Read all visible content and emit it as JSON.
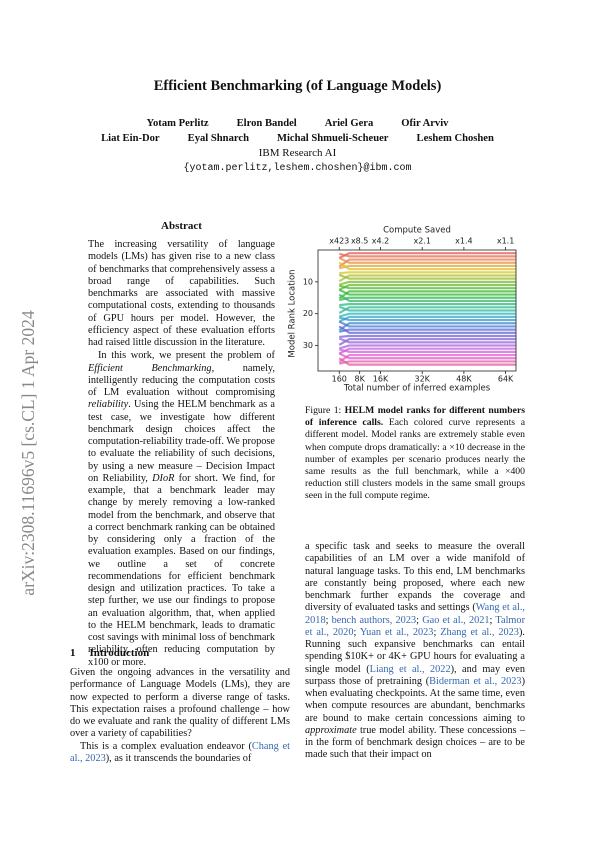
{
  "sidebar": "arXiv:2308.11696v5  [cs.CL]  1 Apr 2024",
  "header": {
    "title": "Efficient Benchmarking (of Language Models)",
    "authors": [
      [
        "Yotam Perlitz",
        "Elron Bandel",
        "Ariel Gera",
        "Ofir Arviv"
      ],
      [
        "Liat Ein-Dor",
        "Eyal Shnarch",
        "Michal Shmueli-Scheuer",
        "Leshem Choshen"
      ]
    ],
    "affiliation": "IBM Research AI",
    "email": "{yotam.perlitz,leshem.choshen}@ibm.com"
  },
  "abstract": {
    "heading": "Abstract",
    "paragraphs": [
      [
        "The increasing versatility of language models (LMs) has given rise to a new class of benchmarks that comprehensively assess a broad range of capabilities. Such benchmarks are associated with massive computational costs, extending to thousands of GPU hours per model. However, the efficiency aspect of these evaluation efforts had raised little discussion in the literature."
      ],
      [
        "In this work, we present the problem of ",
        {
          "em": "Efficient Benchmarking"
        },
        ", namely, intelligently reducing the computation costs of LM evaluation without compromising ",
        {
          "em": "reliability"
        },
        ". Using the HELM benchmark as a test case, we investigate how different benchmark design choices affect the computation-reliability trade-off. We propose to evaluate the reliability of such decisions, by using a new measure – Decision Impact on Reliability, ",
        {
          "em": "DIoR"
        },
        " for short. We find, for example, that a benchmark leader may change by merely removing a low-ranked model from the benchmark, and observe that a correct benchmark ranking can be obtained by considering only a fraction of the evaluation examples. Based on our findings, we outline a set of concrete recommendations for efficient benchmark design and utilization practices. To take a step further, we use our findings to propose an evaluation algorithm, that, when applied to the HELM benchmark, leads to dramatic cost savings with minimal loss of benchmark reliability, often reducing computation by x100 or more."
      ]
    ]
  },
  "introduction": {
    "number": "1",
    "heading": "Introduction",
    "paragraphs": [
      [
        "Given the ongoing advances in the versatility and performance of Language Models (LMs), they are now expected to perform a diverse range of tasks. This expectation raises a profound challenge – how do we evaluate and rank the quality of different LMs over a variety of capabilities?"
      ],
      [
        "This is a complex evaluation endeavor (",
        {
          "cite": "Chang et al., 2023"
        },
        "), as it transcends the boundaries of"
      ]
    ]
  },
  "figure": {
    "chart_data": {
      "type": "line",
      "title": "Compute Saved",
      "xlabel": "Total number of inferred examples",
      "ylabel": "Model Rank Location",
      "x": [
        160,
        4000,
        68000
      ],
      "xlim": [
        -8000,
        68000
      ],
      "ylim": [
        38,
        0
      ],
      "xticks": [
        160,
        {
          "value": 8000,
          "label": "8K"
        },
        {
          "value": 16000,
          "label": "16K"
        },
        {
          "value": 32000,
          "label": "32K"
        },
        {
          "value": 48000,
          "label": "48K"
        },
        {
          "value": 64000,
          "label": "64K"
        }
      ],
      "x2ticks": [
        {
          "value": 160,
          "label": "x423"
        },
        {
          "value": 8000,
          "label": "x8.5"
        },
        {
          "value": 16000,
          "label": "x4.2"
        },
        {
          "value": 32000,
          "label": "x2.1"
        },
        {
          "value": 48000,
          "label": "x1.4"
        },
        {
          "value": 64000,
          "label": "x1.1"
        }
      ],
      "yticks": [
        10,
        20,
        30
      ],
      "series": [
        {
          "color": "hsl(0,75%,62%)",
          "values": [
            2.5,
            1,
            1
          ]
        },
        {
          "color": "hsl(10,75%,62%)",
          "values": [
            1.2,
            2,
            2
          ]
        },
        {
          "color": "hsl(19,75%,60%)",
          "values": [
            5.2,
            3,
            3
          ]
        },
        {
          "color": "hsl(29,75%,58%)",
          "values": [
            2.5,
            4,
            4
          ]
        },
        {
          "color": "hsl(38,75%,55%)",
          "values": [
            5.7,
            5,
            5
          ]
        },
        {
          "color": "hsl(48,75%,52%)",
          "values": [
            4,
            6,
            6
          ]
        },
        {
          "color": "hsl(57,70%,48%)",
          "values": [
            7.3,
            7,
            7
          ]
        },
        {
          "color": "hsl(67,65%,46%)",
          "values": [
            9.8,
            8,
            8
          ]
        },
        {
          "color": "hsl(76,60%,46%)",
          "values": [
            7.8,
            9,
            9
          ]
        },
        {
          "color": "hsl(86,60%,45%)",
          "values": [
            10.9,
            10,
            10
          ]
        },
        {
          "color": "hsl(95,60%,45%)",
          "values": [
            12.5,
            11,
            11
          ]
        },
        {
          "color": "hsl(105,60%,45%)",
          "values": [
            11.2,
            12,
            12
          ]
        },
        {
          "color": "hsl(114,60%,45%)",
          "values": [
            15.2,
            13,
            13
          ]
        },
        {
          "color": "hsl(124,60%,45%)",
          "values": [
            12.5,
            14,
            14
          ]
        },
        {
          "color": "hsl(133,60%,45%)",
          "values": [
            15.7,
            15,
            15
          ]
        },
        {
          "color": "hsl(143,60%,45%)",
          "values": [
            14,
            16,
            16
          ]
        },
        {
          "color": "hsl(152,60%,45%)",
          "values": [
            17.3,
            17,
            17
          ]
        },
        {
          "color": "hsl(162,60%,45%)",
          "values": [
            19.8,
            18,
            18
          ]
        },
        {
          "color": "hsl(171,60%,45%)",
          "values": [
            17.8,
            19,
            19
          ]
        },
        {
          "color": "hsl(181,60%,45%)",
          "values": [
            20.9,
            20,
            20
          ]
        },
        {
          "color": "hsl(190,60%,48%)",
          "values": [
            22.5,
            21,
            21
          ]
        },
        {
          "color": "hsl(200,60%,50%)",
          "values": [
            21.2,
            22,
            22
          ]
        },
        {
          "color": "hsl(209,60%,52%)",
          "values": [
            25.2,
            23,
            23
          ]
        },
        {
          "color": "hsl(219,60%,55%)",
          "values": [
            22.5,
            24,
            24
          ]
        },
        {
          "color": "hsl(228,60%,58%)",
          "values": [
            25.7,
            25,
            25
          ]
        },
        {
          "color": "hsl(238,60%,60%)",
          "values": [
            24,
            26,
            26
          ]
        },
        {
          "color": "hsl(247,60%,62%)",
          "values": [
            27.3,
            27,
            27
          ]
        },
        {
          "color": "hsl(257,60%,62%)",
          "values": [
            29.8,
            28,
            28
          ]
        },
        {
          "color": "hsl(266,60%,62%)",
          "values": [
            27.8,
            29,
            29
          ]
        },
        {
          "color": "hsl(276,60%,62%)",
          "values": [
            30.9,
            30,
            30
          ]
        },
        {
          "color": "hsl(285,60%,62%)",
          "values": [
            32.5,
            31,
            31
          ]
        },
        {
          "color": "hsl(295,65%,62%)",
          "values": [
            31.2,
            32,
            32
          ]
        },
        {
          "color": "hsl(304,65%,62%)",
          "values": [
            35.2,
            33,
            33
          ]
        },
        {
          "color": "hsl(314,70%,62%)",
          "values": [
            32.5,
            34,
            34
          ]
        },
        {
          "color": "hsl(323,70%,62%)",
          "values": [
            35.7,
            35,
            35
          ]
        },
        {
          "color": "hsl(333,70%,62%)",
          "values": [
            34,
            36,
            36
          ]
        }
      ]
    },
    "caption": [
      "Figure 1: ",
      {
        "strong": "HELM model ranks for different numbers of inference calls."
      },
      " Each colored curve represents a different model. Model ranks are extremely stable even when compute drops dramatically: a ×10 decrease in the number of examples per scenario produces nearly the same results as the full benchmark, while a ×400 reduction still clusters models in the same small groups seen in the full compute regime."
    ]
  },
  "right_column": {
    "paragraphs": [
      [
        "a specific task and seeks to measure the overall capabilities of an LM over a wide manifold of natural language tasks. To this end, LM benchmarks are constantly being proposed, where each new benchmark further expands the coverage and diversity of evaluated tasks and settings (",
        {
          "cite": "Wang et al., 2018"
        },
        "; ",
        {
          "cite": "bench authors, 2023"
        },
        "; ",
        {
          "cite": "Gao et al., 2021"
        },
        "; ",
        {
          "cite": "Talmor et al., 2020"
        },
        "; ",
        {
          "cite": "Yuan et al., 2023"
        },
        "; ",
        {
          "cite": "Zhang et al., 2023"
        },
        "). Running such expansive benchmarks can entail spending $10K+ or 4K+ GPU hours for evaluating a single model (",
        {
          "cite": "Liang et al., 2022"
        },
        "), and may even surpass those of pretraining (",
        {
          "cite": "Biderman et al., 2023"
        },
        ") when evaluating checkpoints. At the same time, even when compute resources are abundant, benchmarks are bound to make certain concessions aiming to ",
        {
          "em": "approximate"
        },
        " true model ability. These concessions – in the form of benchmark design choices – are to be made such that their impact on"
      ]
    ]
  }
}
